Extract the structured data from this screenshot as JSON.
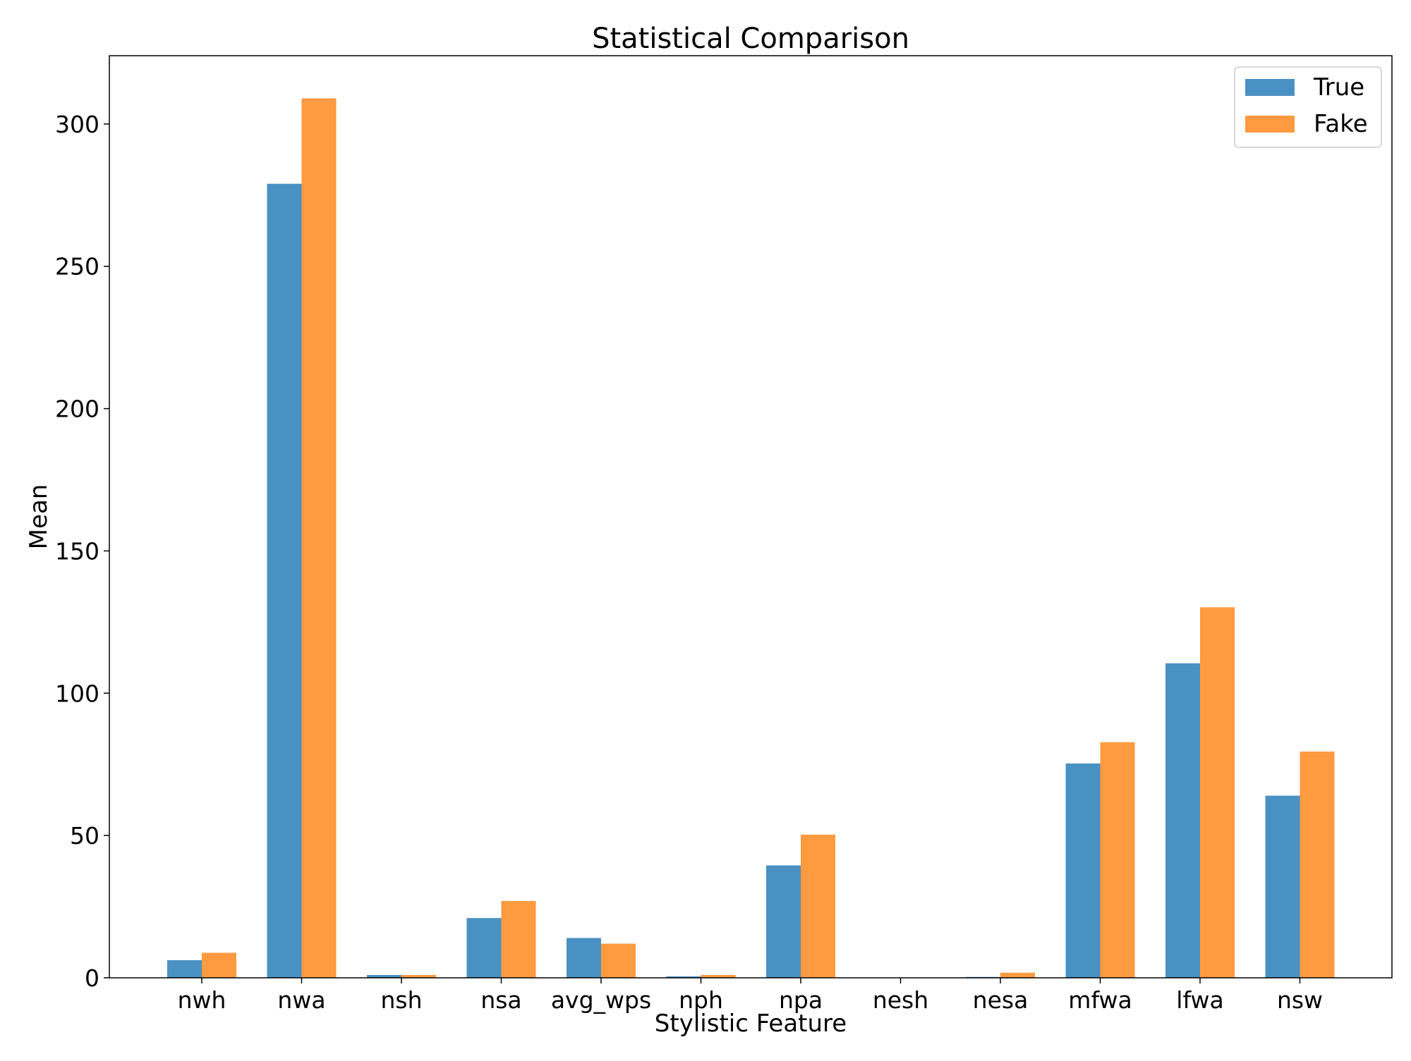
{
  "chart_data": {
    "type": "bar",
    "title": "Statistical Comparison",
    "xlabel": "Stylistic Feature",
    "ylabel": "Mean",
    "categories": [
      "nwh",
      "nwa",
      "nsh",
      "nsa",
      "avg_wps",
      "nph",
      "npa",
      "nesh",
      "nesa",
      "mfwa",
      "lfwa",
      "nsw"
    ],
    "series": [
      {
        "name": "True",
        "color": "#4a91c3",
        "values": [
          6.2,
          279,
          1.0,
          21,
          14,
          0.5,
          39.5,
          0.1,
          0.3,
          75.3,
          110.5,
          64
        ]
      },
      {
        "name": "Fake",
        "color": "#fe9a40",
        "values": [
          8.8,
          309,
          1.0,
          27,
          12,
          1.0,
          50.3,
          0.1,
          1.8,
          82.8,
          130.2,
          79.5
        ]
      }
    ],
    "ylim": [
      0,
      324
    ],
    "yticks": [
      0,
      50,
      100,
      150,
      200,
      250,
      300
    ],
    "legend_position": "top-right",
    "grid": false
  }
}
